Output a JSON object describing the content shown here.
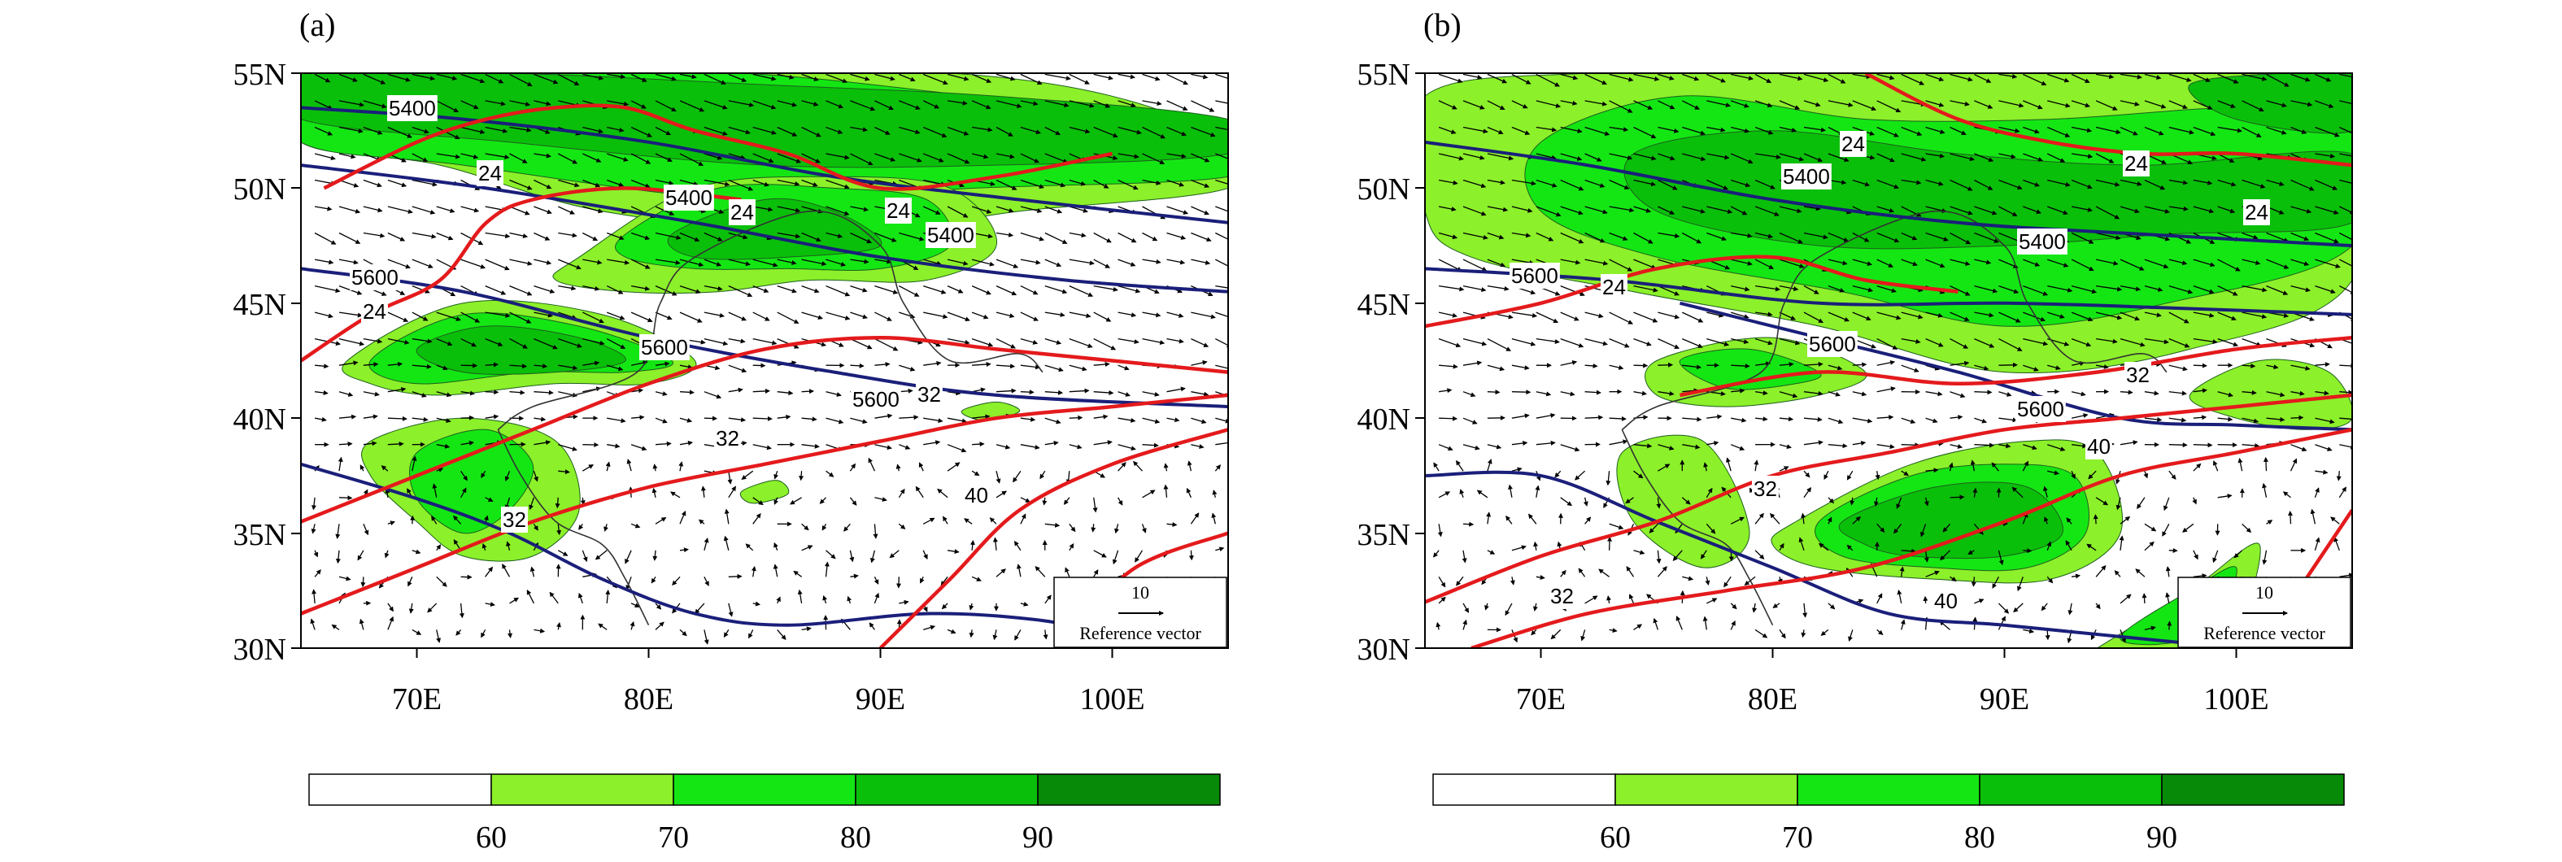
{
  "figure": {
    "colors": {
      "shade": [
        "#ffffff",
        "#8cf02a",
        "#14e614",
        "#0abf0a",
        "#078a07"
      ],
      "contour_red": "#e41a1c",
      "contour_navy": "#1a1f7a",
      "vector": "#000000",
      "border": "#333333"
    },
    "colorbar": {
      "levels": [
        60,
        70,
        80,
        90
      ],
      "labels": [
        "60",
        "70",
        "80",
        "90"
      ]
    },
    "panels": [
      {
        "label": "(a)",
        "lon_ticks": [
          "70E",
          "80E",
          "90E",
          "100E"
        ],
        "lat_ticks": [
          "55N",
          "50N",
          "45N",
          "40N",
          "35N",
          "30N"
        ],
        "lon_range": [
          65,
          105
        ],
        "lat_range": [
          30,
          55
        ],
        "reference_vector": {
          "magnitude": "10",
          "label": "Reference vector"
        },
        "contour_labels": [
          "5400",
          "5400",
          "5400",
          "5600",
          "5600",
          "5600",
          "24",
          "24",
          "24",
          "24",
          "32",
          "32",
          "32",
          "40"
        ],
        "shading": [
          {
            "level": 1,
            "lon": [
              65,
              75,
              84,
              93,
              100,
              105,
              105,
              96,
              88,
              78,
              71,
              65
            ],
            "lat": [
              55,
              55,
              55,
              55,
              54,
              52,
              50,
              49,
              48,
              49,
              51,
              52
            ]
          },
          {
            "level": 2,
            "lon": [
              65,
              74,
              84,
              94,
              102,
              105,
              105,
              94,
              84,
              72,
              65
            ],
            "lat": [
              55,
              55,
              55,
              54,
              53,
              52,
              50.5,
              50,
              49.5,
              51,
              52
            ]
          },
          {
            "level": 3,
            "lon": [
              65,
              74,
              85,
              95,
              105,
              105,
              95,
              85,
              74,
              65
            ],
            "lat": [
              55,
              55,
              54.5,
              54,
              53,
              51.5,
              51,
              51,
              52,
              53
            ]
          },
          {
            "level": 1,
            "lon": [
              77,
              82,
              88,
              93,
              95,
              92,
              87,
              83,
              79,
              76
            ],
            "lat": [
              47,
              50,
              50.5,
              50,
              47.5,
              46,
              46,
              45.5,
              45.5,
              46
            ]
          },
          {
            "level": 2,
            "lon": [
              79,
              83,
              88,
              92,
              93,
              90,
              86,
              82,
              79
            ],
            "lat": [
              48,
              50,
              50,
              49.5,
              47.5,
              46.5,
              46.5,
              46.5,
              47
            ]
          },
          {
            "level": 3,
            "lon": [
              81,
              85,
              88,
              90,
              86,
              82
            ],
            "lat": [
              48,
              49.5,
              49,
              47.5,
              47,
              47
            ]
          },
          {
            "level": 1,
            "lon": [
              67,
              72,
              78,
              82,
              80,
              76,
              71,
              68
            ],
            "lat": [
              42.5,
              45,
              44.5,
              42.5,
              41.5,
              41.5,
              41,
              41.5
            ]
          },
          {
            "level": 2,
            "lon": [
              68,
              72,
              77,
              81,
              79,
              75,
              70
            ],
            "lat": [
              42.5,
              44.5,
              44,
              42.5,
              42,
              42,
              41.5
            ]
          },
          {
            "level": 3,
            "lon": [
              70,
              73,
              77,
              79,
              76,
              72
            ],
            "lat": [
              43,
              44,
              43.5,
              42.5,
              42,
              42
            ]
          },
          {
            "level": 1,
            "lon": [
              68,
              72,
              76,
              77,
              75,
              72,
              70,
              68
            ],
            "lat": [
              39,
              40,
              39,
              36,
              34,
              34,
              35.5,
              37.5
            ]
          },
          {
            "level": 2,
            "lon": [
              70,
              73,
              75,
              74,
              72,
              70
            ],
            "lat": [
              38.5,
              39.5,
              38,
              36,
              35,
              36.5
            ]
          },
          {
            "level": 1,
            "lon": [
              93.5,
              95,
              96,
              94.5
            ],
            "lat": [
              40.3,
              40.7,
              40.3,
              39.9
            ]
          },
          {
            "level": 1,
            "lon": [
              84,
              85.5,
              86,
              84.5
            ],
            "lat": [
              36.8,
              37.3,
              36.7,
              36.3
            ]
          }
        ],
        "navy_lines": [
          {
            "lon": [
              65,
              72,
              80,
              88,
              96,
              105
            ],
            "lat": [
              53.5,
              53,
              52,
              50.5,
              49.5,
              48.5
            ]
          },
          {
            "lon": [
              65,
              73,
              82,
              90,
              98,
              105
            ],
            "lat": [
              51,
              50,
              48.5,
              47,
              46,
              45.5
            ]
          },
          {
            "lon": [
              65,
              72,
              80,
              88,
              95,
              105
            ],
            "lat": [
              46.5,
              45.5,
              43.5,
              42,
              41,
              40.5
            ]
          },
          {
            "lon": [
              65,
              70,
              74,
              78,
              82,
              86,
              92,
              97,
              100,
              102
            ],
            "lat": [
              38,
              36.5,
              35,
              33,
              31.5,
              31,
              31.5,
              31.2,
              30.5,
              30
            ]
          }
        ],
        "red_lines": [
          {
            "lon": [
              66,
              70,
              73,
              76,
              79,
              82,
              86,
              90,
              95,
              100
            ],
            "lat": [
              50,
              52,
              53,
              53.5,
              53.5,
              52.5,
              51.5,
              50,
              50.5,
              51.5
            ]
          },
          {
            "lon": [
              65,
              68,
              71,
              73,
              75,
              79,
              84
            ],
            "lat": [
              42.5,
              44.5,
              46,
              48.5,
              49.5,
              50,
              49.5
            ]
          },
          {
            "lon": [
              65,
              70,
              75,
              80,
              85,
              90,
              95,
              100,
              105
            ],
            "lat": [
              35.5,
              37.5,
              39.5,
              41.5,
              43,
              43.5,
              43,
              42.5,
              42
            ]
          },
          {
            "lon": [
              65,
              70,
              75,
              80,
              85,
              90,
              95,
              100,
              105
            ],
            "lat": [
              31.5,
              33.5,
              35.5,
              37,
              38,
              39,
              40,
              40.5,
              41
            ]
          },
          {
            "lon": [
              90,
              93,
              96,
              100,
              105
            ],
            "lat": [
              30,
              33,
              36,
              38,
              39.5
            ]
          },
          {
            "lon": [
              98,
              101,
              105
            ],
            "lat": [
              30.5,
              33.5,
              35
            ]
          }
        ]
      },
      {
        "label": "(b)",
        "lon_ticks": [
          "70E",
          "80E",
          "90E",
          "100E"
        ],
        "lat_ticks": [
          "55N",
          "50N",
          "45N",
          "40N",
          "35N",
          "30N"
        ],
        "lon_range": [
          65,
          105
        ],
        "lat_range": [
          30,
          55
        ],
        "reference_vector": {
          "magnitude": "10",
          "label": "Reference vector"
        },
        "contour_labels": [
          "5400",
          "5400",
          "5600",
          "5600",
          "5600",
          "24",
          "24",
          "24",
          "24",
          "32",
          "32",
          "32",
          "40",
          "40"
        ],
        "shading": [
          {
            "level": 1,
            "lon": [
              65,
              72,
              80,
              90,
              100,
              105,
              105,
              98,
              90,
              82,
              74,
              67,
              65
            ],
            "lat": [
              54,
              55,
              55,
              55,
              55,
              54,
              46,
              43,
              42,
              44,
              45.5,
              47,
              49
            ]
          },
          {
            "level": 2,
            "lon": [
              70,
              76,
              84,
              92,
              100,
              105,
              105,
              97,
              90,
              83,
              75,
              70
            ],
            "lat": [
              52,
              54,
              53,
              53,
              53.5,
              53,
              47.5,
              45,
              44,
              45.5,
              47,
              49
            ]
          },
          {
            "level": 3,
            "lon": [
              74,
              80,
              88,
              96,
              105,
              105,
              97,
              90,
              82,
              75
            ],
            "lat": [
              51.5,
              52.5,
              51.5,
              51,
              51.5,
              48.5,
              48,
              47.5,
              47.5,
              49
            ]
          },
          {
            "level": 3,
            "lon": [
              98,
              102,
              105,
              105,
              100
            ],
            "lat": [
              54.5,
              55,
              55,
              52.5,
              53
            ]
          },
          {
            "level": 1,
            "lon": [
              75,
              80,
              84,
              82,
              78,
              75
            ],
            "lat": [
              42.5,
              43.5,
              42,
              41,
              40.5,
              41
            ]
          },
          {
            "level": 2,
            "lon": [
              76,
              79,
              82,
              81,
              78
            ],
            "lat": [
              42.5,
              43,
              42,
              41.5,
              41.3
            ]
          },
          {
            "level": 1,
            "lon": [
              73.5,
              77,
              79,
              77,
              74
            ],
            "lat": [
              38.5,
              39,
              35,
              33.5,
              35.5
            ]
          },
          {
            "level": 1,
            "lon": [
              81,
              86,
              91,
              94,
              95,
              92,
              87,
              82,
              80
            ],
            "lat": [
              35.5,
              38,
              39,
              38.5,
              35,
              33,
              33,
              33.5,
              34.5
            ]
          },
          {
            "level": 2,
            "lon": [
              82,
              86,
              90,
              93,
              93.5,
              91,
              87,
              83
            ],
            "lat": [
              35.5,
              37.5,
              38,
              37.5,
              35,
              33.5,
              33.5,
              34
            ]
          },
          {
            "level": 3,
            "lon": [
              83,
              87,
              91,
              92.5,
              90,
              86,
              84
            ],
            "lat": [
              35.5,
              37,
              37,
              35,
              34,
              34,
              34.5
            ]
          },
          {
            "level": 1,
            "lon": [
              94,
              98,
              101,
              99.5,
              96,
              94
            ],
            "lat": [
              30,
              32.5,
              34.5,
              30,
              30,
              30
            ]
          },
          {
            "level": 2,
            "lon": [
              95,
              98,
              100,
              99,
              97
            ],
            "lat": [
              30.5,
              32.5,
              33.5,
              31,
              30.2
            ]
          },
          {
            "level": 1,
            "lon": [
              98,
              101,
              104,
              105,
              103,
              100
            ],
            "lat": [
              41,
              42.5,
              42,
              40,
              39.5,
              40
            ]
          }
        ],
        "navy_lines": [
          {
            "lon": [
              65,
              72,
              80,
              88,
              96,
              105
            ],
            "lat": [
              52,
              51,
              49.5,
              48.5,
              48,
              47.5
            ]
          },
          {
            "lon": [
              65,
              73,
              82,
              90,
              97,
              105
            ],
            "lat": [
              46.5,
              46,
              45,
              45,
              44.8,
              44.5
            ]
          },
          {
            "lon": [
              76,
              82,
              88,
              95,
              100,
              105
            ],
            "lat": [
              45,
              43.5,
              42,
              40,
              39.7,
              39.5
            ]
          },
          {
            "lon": [
              65,
              70,
              75,
              80,
              85,
              90,
              95,
              98
            ],
            "lat": [
              37.5,
              37.5,
              35.5,
              33.5,
              31.5,
              31,
              30.5,
              30.2
            ]
          }
        ],
        "red_lines": [
          {
            "lon": [
              84,
              88,
              92,
              96,
              100,
              105
            ],
            "lat": [
              55,
              53,
              52,
              51.5,
              51.5,
              51
            ]
          },
          {
            "lon": [
              65,
              70,
              75,
              80,
              84,
              88
            ],
            "lat": [
              44,
              45,
              46.5,
              47,
              46,
              45.5
            ]
          },
          {
            "lon": [
              76,
              82,
              88,
              94,
              100,
              105
            ],
            "lat": [
              41,
              42,
              41.5,
              42,
              43,
              43.5
            ]
          },
          {
            "lon": [
              65,
              70,
              75,
              80,
              85,
              90,
              95,
              100,
              105
            ],
            "lat": [
              32,
              34,
              35.5,
              37.5,
              38.5,
              39.5,
              40,
              40.5,
              41
            ]
          },
          {
            "lon": [
              67,
              72,
              78,
              84,
              90,
              95,
              100,
              105
            ],
            "lat": [
              30,
              31.5,
              32.5,
              33.5,
              35.5,
              37.5,
              38.5,
              39.5
            ]
          },
          {
            "lon": [
              101,
              103,
              105
            ],
            "lat": [
              30,
              33,
              36
            ]
          }
        ]
      }
    ]
  }
}
